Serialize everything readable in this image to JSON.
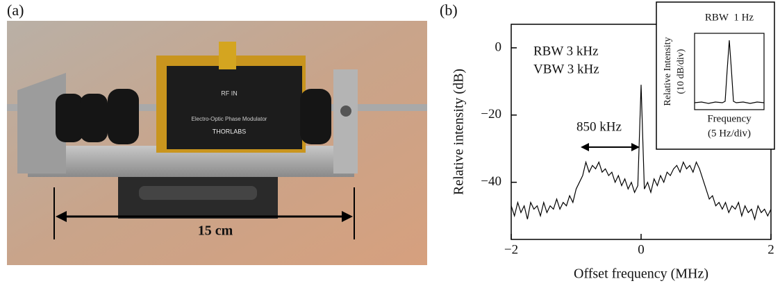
{
  "panel_a": {
    "label": "(a)",
    "scale_label": "15 cm",
    "brand": "THORLABS",
    "device": "Electro-Optic Phase Modulator",
    "port": "RF IN"
  },
  "chart_data": {
    "type": "line",
    "panel_label": "(b)",
    "xlabel": "Offset frequency (MHz)",
    "ylabel": "Relative intensity (dB)",
    "annotations": [
      "RBW 3 kHz",
      "VBW 3 kHz",
      "850 kHz"
    ],
    "x": [
      -2,
      -1.95,
      -1.9,
      -1.85,
      -1.8,
      -1.75,
      -1.7,
      -1.65,
      -1.6,
      -1.55,
      -1.5,
      -1.45,
      -1.4,
      -1.35,
      -1.3,
      -1.25,
      -1.2,
      -1.15,
      -1.1,
      -1.05,
      -1,
      -0.95,
      -0.9,
      -0.85,
      -0.8,
      -0.75,
      -0.7,
      -0.65,
      -0.6,
      -0.55,
      -0.5,
      -0.45,
      -0.4,
      -0.35,
      -0.3,
      -0.25,
      -0.2,
      -0.15,
      -0.1,
      -0.05,
      0,
      0.05,
      0.1,
      0.15,
      0.2,
      0.25,
      0.3,
      0.35,
      0.4,
      0.45,
      0.5,
      0.55,
      0.6,
      0.65,
      0.7,
      0.75,
      0.8,
      0.85,
      0.9,
      0.95,
      1,
      1.05,
      1.1,
      1.15,
      1.2,
      1.25,
      1.3,
      1.35,
      1.4,
      1.45,
      1.5,
      1.55,
      1.6,
      1.65,
      1.7,
      1.75,
      1.8,
      1.85,
      1.9,
      1.95,
      2
    ],
    "values": [
      -47,
      -50,
      -46,
      -49,
      -47,
      -51,
      -46,
      -48,
      -47,
      -50,
      -46,
      -49,
      -47,
      -48,
      -45,
      -48,
      -46,
      -47,
      -44,
      -46,
      -42,
      -40,
      -38,
      -34,
      -37,
      -35,
      -36,
      -34,
      -37,
      -36,
      -38,
      -37,
      -40,
      -38,
      -41,
      -39,
      -42,
      -40,
      -43,
      -41,
      -11,
      -42,
      -40,
      -43,
      -39,
      -41,
      -38,
      -40,
      -37,
      -38,
      -36,
      -35,
      -37,
      -34,
      -36,
      -35,
      -37,
      -34,
      -36,
      -39,
      -42,
      -45,
      -44,
      -47,
      -46,
      -48,
      -46,
      -49,
      -47,
      -48,
      -46,
      -50,
      -47,
      -49,
      -48,
      -51,
      -47,
      -49,
      -48,
      -50,
      -48
    ],
    "color": "#000000",
    "xlim": [
      -2,
      2
    ],
    "ylim": [
      -57,
      7
    ],
    "xticks": [
      {
        "value": -2,
        "label": "−2"
      },
      0,
      2
    ],
    "yticks": [
      0,
      {
        "value": -20,
        "label": "−20"
      },
      {
        "value": -40,
        "label": "−40"
      }
    ],
    "inset": {
      "title": "RBW  1 Hz",
      "ylabel": "Relative Intensity",
      "yunit": "(10 dB/div)",
      "xlabel": "Frequency",
      "xunit": "(5 Hz/div)"
    }
  }
}
